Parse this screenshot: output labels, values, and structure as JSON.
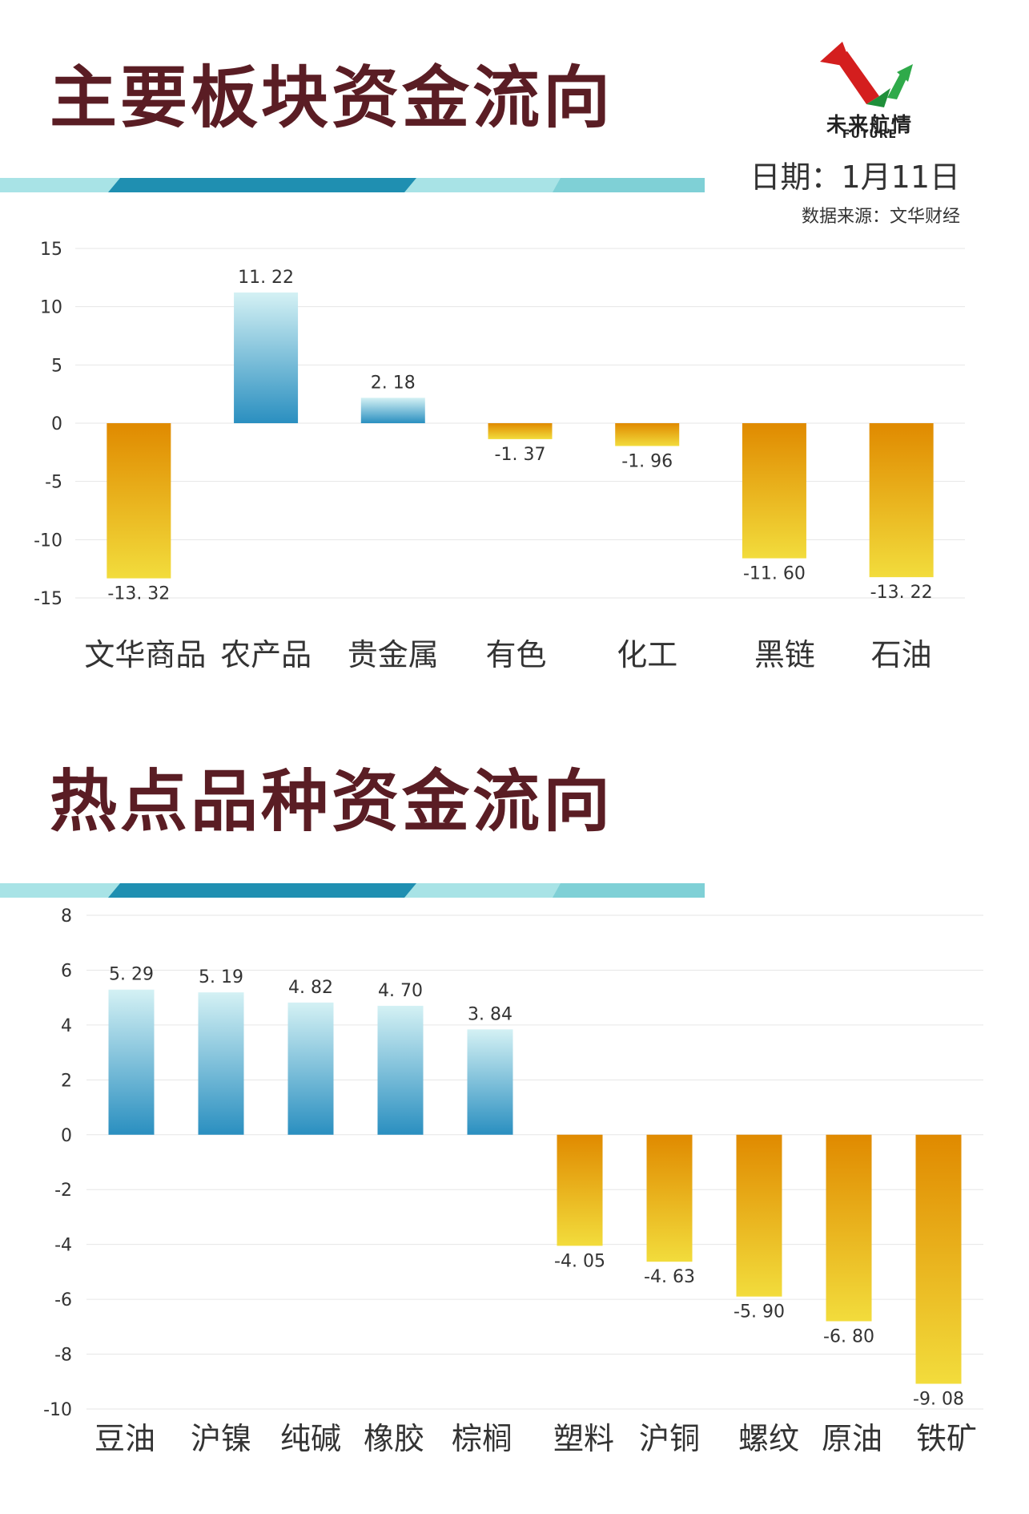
{
  "header": {
    "title1": "主要板块资金流向",
    "title2": "热点品种资金流向",
    "logo_text": "未来航情",
    "logo_sub": "FUTURE",
    "date": "日期：1月11日",
    "source": "数据来源：文华财经"
  },
  "colors": {
    "title": "#5a1d24",
    "positive_top": "#d4f1f4",
    "positive_bottom": "#2a8fc0",
    "negative_top": "#e08a00",
    "negative_bottom": "#f2dc3c",
    "band_dark": "#1f8fb1",
    "band_light": "#a8e3e6"
  },
  "chart_data": [
    {
      "type": "bar",
      "categories": [
        "文华商品",
        "农产品",
        "贵金属",
        "有色",
        "化工",
        "黑链",
        "石油"
      ],
      "values": [
        -13.32,
        11.22,
        2.18,
        -1.37,
        -1.96,
        -11.6,
        -13.22
      ],
      "value_labels": [
        "-13. 32",
        "11. 22",
        "2. 18",
        "-1. 37",
        "-1. 96",
        "-11. 60",
        "-13. 22"
      ],
      "ylim": [
        -15,
        15
      ],
      "yticks": [
        15,
        10,
        5,
        0,
        -5,
        -10,
        -15
      ],
      "ytick_labels": [
        "15",
        "10",
        "5",
        "0",
        "-5",
        "-10",
        "-15"
      ],
      "grid": true
    },
    {
      "type": "bar",
      "categories": [
        "豆油",
        "沪镍",
        "纯碱",
        "橡胶",
        "棕榈",
        "塑料",
        "沪铜",
        "螺纹",
        "原油",
        "铁矿"
      ],
      "values": [
        5.29,
        5.19,
        4.82,
        4.7,
        3.84,
        -4.05,
        -4.63,
        -5.9,
        -6.8,
        -9.08
      ],
      "value_labels": [
        "5. 29",
        "5. 19",
        "4. 82",
        "4. 70",
        "3. 84",
        "-4. 05",
        "-4. 63",
        "-5. 90",
        "-6. 80",
        "-9. 08"
      ],
      "ylim": [
        -10,
        8
      ],
      "yticks": [
        8,
        6,
        4,
        2,
        0,
        -2,
        -4,
        -6,
        -8,
        -10
      ],
      "ytick_labels": [
        "8",
        "6",
        "4",
        "2",
        "0",
        "-2",
        "-4",
        "-6",
        "-8",
        "-10"
      ],
      "grid": true
    }
  ]
}
